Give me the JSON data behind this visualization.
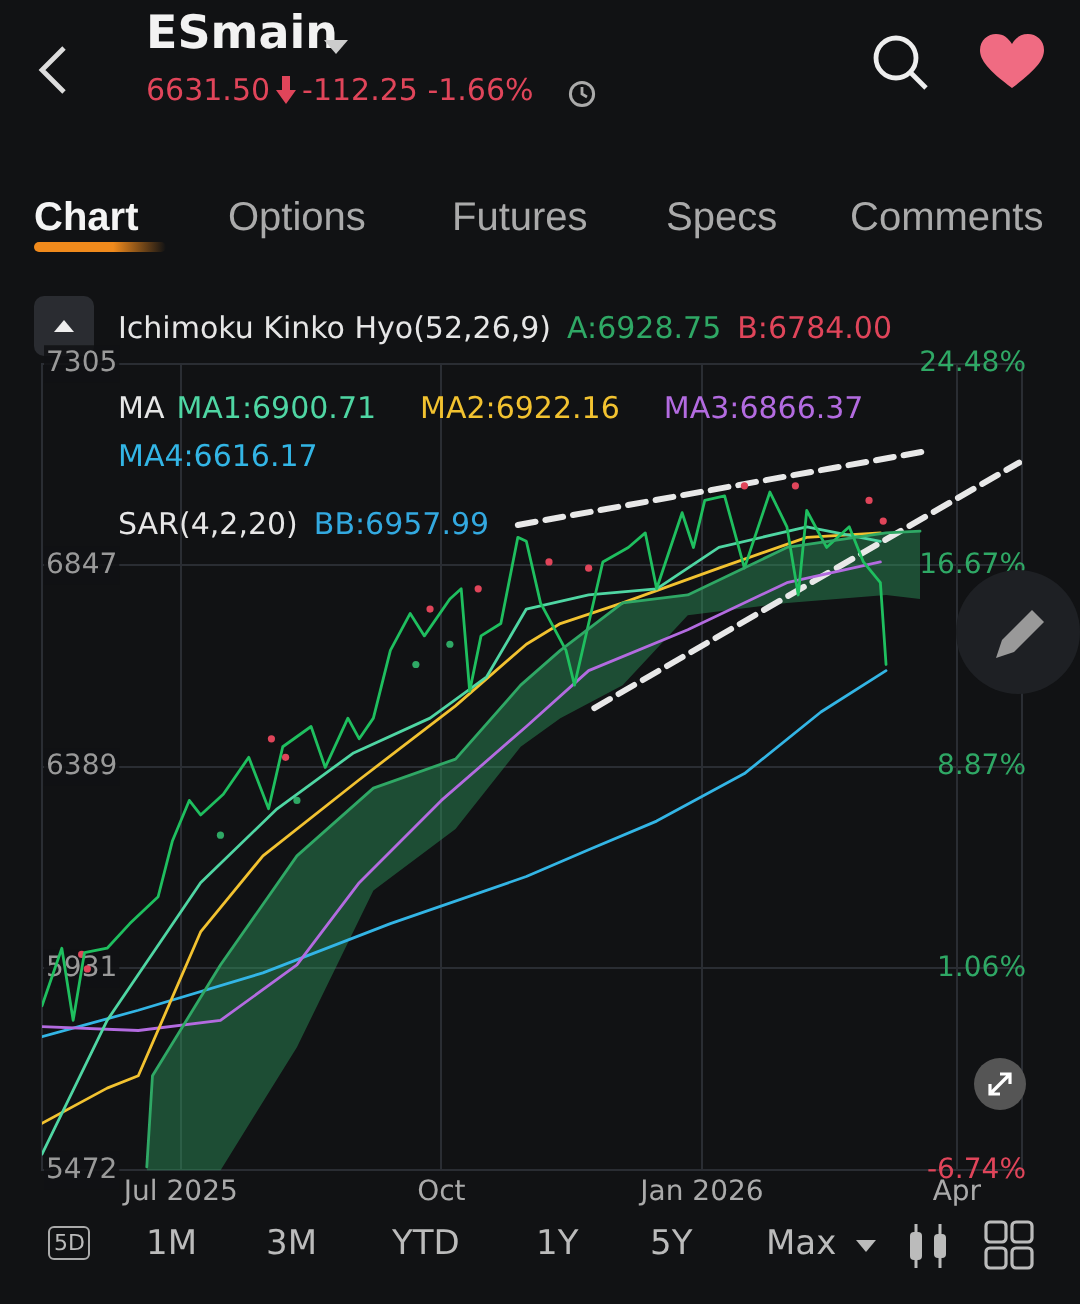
{
  "chart_data": {
    "type": "line",
    "title": "ESmain",
    "subtitle": "6631.50 -112.25 -1.66%",
    "annotations": [
      "Ichimoku Kinko Hyo(52,26,9)",
      "A:6928.75",
      "B:6784.00",
      "MA",
      "SAR(4,2,20)",
      "BB:6957.99",
      "Chart",
      "Options",
      "Futures",
      "Specs",
      "Comments",
      "5D",
      "1M",
      "3M",
      "YTD",
      "1Y",
      "5Y",
      "Max"
    ],
    "legend": "top left",
    "grid": true,
    "xlim": [
      "2025-05-13",
      "2026-04-24"
    ],
    "xticks": [
      {
        "value": "2025-07-01",
        "label": "Jul 2025"
      },
      {
        "value": "2025-10-01",
        "label": "Oct"
      },
      {
        "value": "2026-01-01",
        "label": "Jan 2026"
      },
      {
        "value": "2026-04-01",
        "label": "Apr"
      }
    ],
    "ylim": [
      5472,
      7305
    ],
    "yticks": [
      5472,
      5931,
      6389,
      6847,
      7305
    ],
    "y2lim": [
      -6.74,
      24.48
    ],
    "y2ticks": [
      {
        "value": -6.74,
        "label": "-6.74%"
      },
      {
        "value": 1.06,
        "label": "1.06%"
      },
      {
        "value": 8.87,
        "label": "8.87%"
      },
      {
        "value": 16.67,
        "label": "16.67%"
      },
      {
        "value": 24.48,
        "label": "24.48%"
      }
    ],
    "series": [
      {
        "type": "line",
        "color": "#2fa865",
        "x": [
          "2025-06-19",
          "2025-06-21",
          "2025-07-15",
          "2025-08-11",
          "2025-09-07",
          "2025-10-06",
          "2025-10-29",
          "2025-11-12",
          "2025-12-04",
          "2025-12-27",
          "2026-01-31",
          "2026-03-07",
          "2026-03-19"
        ],
        "values": [
          5480,
          5687,
          5939,
          6187,
          6341,
          6407,
          6575,
          6654,
          6762,
          6780,
          6888,
          6921,
          6925
        ],
        "upper": [
          5480,
          5687,
          5939,
          6187,
          6341,
          6407,
          6575,
          6654,
          6762,
          6780,
          6888,
          6921,
          6925
        ],
        "lower": [
          5472,
          5472,
          5472,
          5752,
          6108,
          6248,
          6435,
          6500,
          6575,
          6734,
          6762,
          6780,
          6771
        ]
      },
      {
        "type": "line",
        "color": "#1fbf5f",
        "x": [
          "2025-05-13",
          "2025-05-20",
          "2025-05-24",
          "2025-05-28",
          "2025-06-05",
          "2025-06-13",
          "2025-06-23",
          "2025-06-28",
          "2025-07-04",
          "2025-07-08",
          "2025-07-16",
          "2025-07-25",
          "2025-08-01",
          "2025-08-06",
          "2025-08-16",
          "2025-08-21",
          "2025-08-29",
          "2025-09-02",
          "2025-09-07",
          "2025-09-13",
          "2025-09-20",
          "2025-09-25",
          "2025-10-04",
          "2025-10-08",
          "2025-10-11",
          "2025-10-15",
          "2025-10-22",
          "2025-10-28",
          "2025-10-31",
          "2025-11-05",
          "2025-11-14",
          "2025-11-17",
          "2025-11-22",
          "2025-11-27",
          "2025-12-06",
          "2025-12-12",
          "2025-12-16",
          "2025-12-25",
          "2025-12-29",
          "2026-01-02",
          "2026-01-09",
          "2026-01-16",
          "2026-01-25",
          "2026-01-31",
          "2026-02-04",
          "2026-02-07",
          "2026-02-14",
          "2026-02-22",
          "2026-02-27",
          "2026-03-05",
          "2026-03-07"
        ],
        "values": [
          5846,
          5977,
          5813,
          5967,
          5977,
          6033,
          6094,
          6220,
          6313,
          6280,
          6327,
          6411,
          6294,
          6435,
          6481,
          6388,
          6500,
          6453,
          6500,
          6654,
          6738,
          6687,
          6771,
          6794,
          6561,
          6687,
          6715,
          6911,
          6902,
          6762,
          6654,
          6575,
          6715,
          6855,
          6888,
          6921,
          6794,
          6967,
          6888,
          6995,
          7005,
          6841,
          7014,
          6935,
          6780,
          6972,
          6888,
          6935,
          6855,
          6808,
          6622
        ]
      },
      {
        "type": "line",
        "name": "MA1:6900.71",
        "color": "#4fd6a3",
        "x": [
          "2025-05-13",
          "2025-06-05",
          "2025-07-08",
          "2025-08-04",
          "2025-08-31",
          "2025-09-27",
          "2025-10-17",
          "2025-10-31",
          "2025-11-22",
          "2025-12-16",
          "2026-01-07",
          "2026-02-07",
          "2026-03-05"
        ],
        "values": [
          5509,
          5813,
          6126,
          6294,
          6421,
          6500,
          6594,
          6748,
          6780,
          6794,
          6888,
          6935,
          6902
        ]
      },
      {
        "type": "line",
        "name": "MA2:6922.16",
        "color": "#f2c230",
        "x": [
          "2025-05-13",
          "2025-06-05",
          "2025-06-16",
          "2025-07-08",
          "2025-07-30",
          "2025-09-02",
          "2025-10-06",
          "2025-10-31",
          "2025-11-12",
          "2025-12-04",
          "2026-01-07",
          "2026-02-07",
          "2026-03-05"
        ],
        "values": [
          5579,
          5659,
          5687,
          6014,
          6187,
          6360,
          6528,
          6668,
          6715,
          6762,
          6841,
          6911,
          6921
        ]
      },
      {
        "type": "line",
        "name": "MA3:6866.37",
        "color": "#b36be0",
        "x": [
          "2025-05-13",
          "2025-06-16",
          "2025-07-15",
          "2025-08-11",
          "2025-09-02",
          "2025-10-01",
          "2025-10-31",
          "2025-11-22",
          "2025-12-27",
          "2026-01-31",
          "2026-03-05"
        ],
        "values": [
          5799,
          5790,
          5813,
          5939,
          6126,
          6313,
          6481,
          6608,
          6701,
          6808,
          6855
        ]
      },
      {
        "type": "line",
        "name": "MA4:6616.17",
        "color": "#33b5e5",
        "x": [
          "2025-05-13",
          "2025-06-16",
          "2025-07-30",
          "2025-09-13",
          "2025-10-31",
          "2025-11-22",
          "2025-12-16",
          "2026-01-16",
          "2026-02-12",
          "2026-03-07"
        ],
        "values": [
          5776,
          5836,
          5921,
          6033,
          6140,
          6201,
          6266,
          6374,
          6514,
          6608
        ]
      },
      {
        "type": "scatter",
        "marker": "circle",
        "x": [
          "2025-05-27",
          "2025-05-29",
          "2025-07-15",
          "2025-08-02",
          "2025-08-07",
          "2025-08-11",
          "2025-09-22",
          "2025-09-27",
          "2025-10-04",
          "2025-10-14",
          "2025-11-08",
          "2025-11-22",
          "2026-01-16",
          "2026-02-03",
          "2026-03-01",
          "2026-03-06"
        ],
        "values": [
          5963,
          5930,
          6234,
          6453,
          6411,
          6313,
          6622,
          6748,
          6668,
          6794,
          6855,
          6841,
          7028,
          7028,
          6995,
          6948
        ],
        "colors": [
          "#e0455a",
          "#e0455a",
          "#2fa865",
          "#e0455a",
          "#e0455a",
          "#2fa865",
          "#2fa865",
          "#e0455a",
          "#2fa865",
          "#e0455a",
          "#e0455a",
          "#e0455a",
          "#e0455a",
          "#e0455a",
          "#e0455a",
          "#e0455a"
        ]
      },
      {
        "type": "line",
        "line_style": "dashed",
        "color": "#e8e8e8",
        "x": [
          "2025-10-28",
          "2026-03-22"
        ],
        "values": [
          6939,
          7108
        ]
      },
      {
        "type": "line",
        "line_style": "dashed",
        "color": "#e8e8e8",
        "x": [
          "2025-11-24",
          "2026-04-23"
        ],
        "values": [
          6523,
          7081
        ]
      }
    ]
  }
}
